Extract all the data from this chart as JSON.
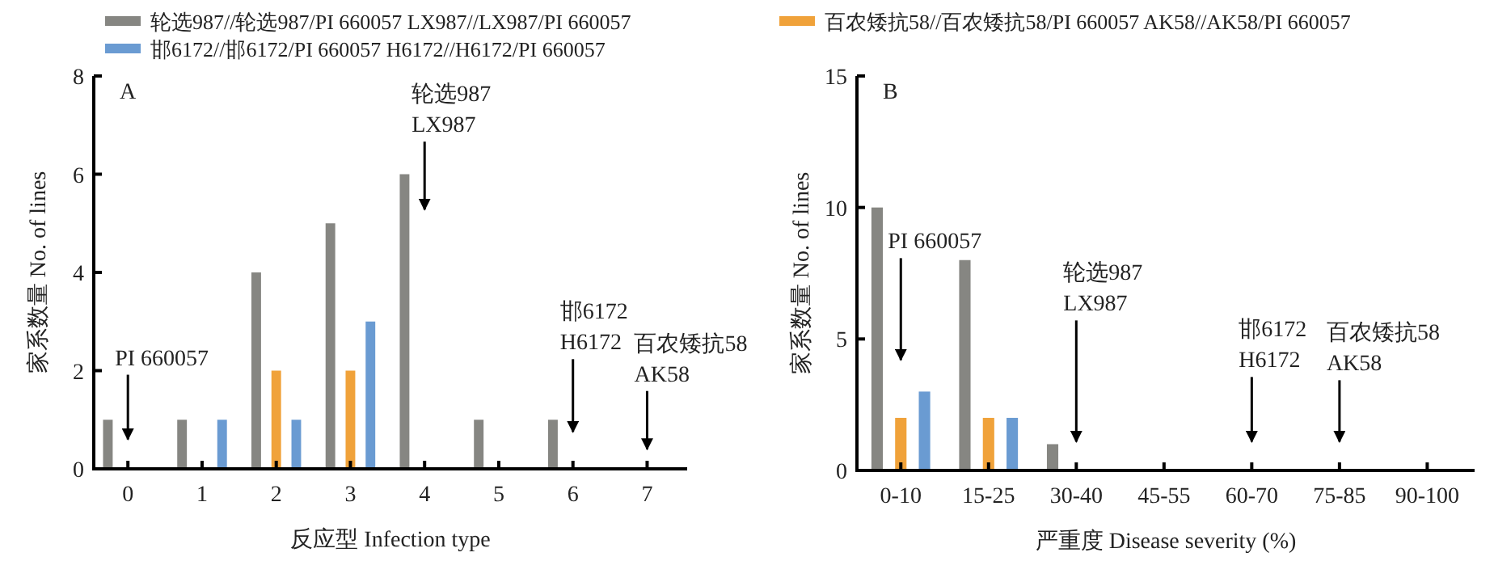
{
  "chart_data": [
    {
      "type": "bar",
      "xlabel": "反应型 Infection type",
      "ylabel": "家系数量 No. of lines",
      "legend": "top",
      "categories": [
        "0",
        "1",
        "2",
        "3",
        "4",
        "5",
        "6",
        "7"
      ],
      "ylim": [
        0,
        8
      ],
      "yticks": [
        0,
        2,
        4,
        6,
        8
      ],
      "series": [
        {
          "name": "轮选987//轮选987/PI 660057  LX987//LX987/PI 660057",
          "color": "#868682",
          "values": [
            1,
            1,
            4,
            5,
            6,
            1,
            1,
            0
          ]
        },
        {
          "name": "百农矮抗58//百农矮抗58/PI 660057  AK58//AK58/PI 660057",
          "color": "#f0a23a",
          "values": [
            0,
            0,
            2,
            2,
            0,
            0,
            0,
            0
          ]
        },
        {
          "name": "邯6172//邯6172/PI 660057  H6172//H6172/PI 660057",
          "color": "#6a9bd2",
          "values": [
            0,
            1,
            1,
            3,
            0,
            0,
            0,
            0
          ]
        }
      ],
      "annotations": [
        "A",
        "PI 660057",
        "轮选987\nLX987",
        "邯6172\nH6172",
        "百农矮抗58\nAK58"
      ]
    },
    {
      "type": "bar",
      "xlabel": "严重度 Disease severity (%)",
      "ylabel": "家系数量 No. of lines",
      "categories": [
        "0-10",
        "15-25",
        "30-40",
        "45-55",
        "60-70",
        "75-85",
        "90-100"
      ],
      "ylim": [
        0,
        15
      ],
      "yticks": [
        0,
        5,
        10,
        15
      ],
      "series": [
        {
          "color": "#868682",
          "values": [
            10,
            8,
            1,
            0,
            0,
            0,
            0
          ]
        },
        {
          "color": "#f0a23a",
          "values": [
            2,
            2,
            0,
            0,
            0,
            0,
            0
          ]
        },
        {
          "color": "#6a9bd2",
          "values": [
            3,
            2,
            0,
            0,
            0,
            0,
            0
          ]
        }
      ],
      "annotations": [
        "B",
        "PI 660057",
        "轮选987\nLX987",
        "邯6172\nH6172",
        "百农矮抗58\nAK58"
      ]
    }
  ]
}
